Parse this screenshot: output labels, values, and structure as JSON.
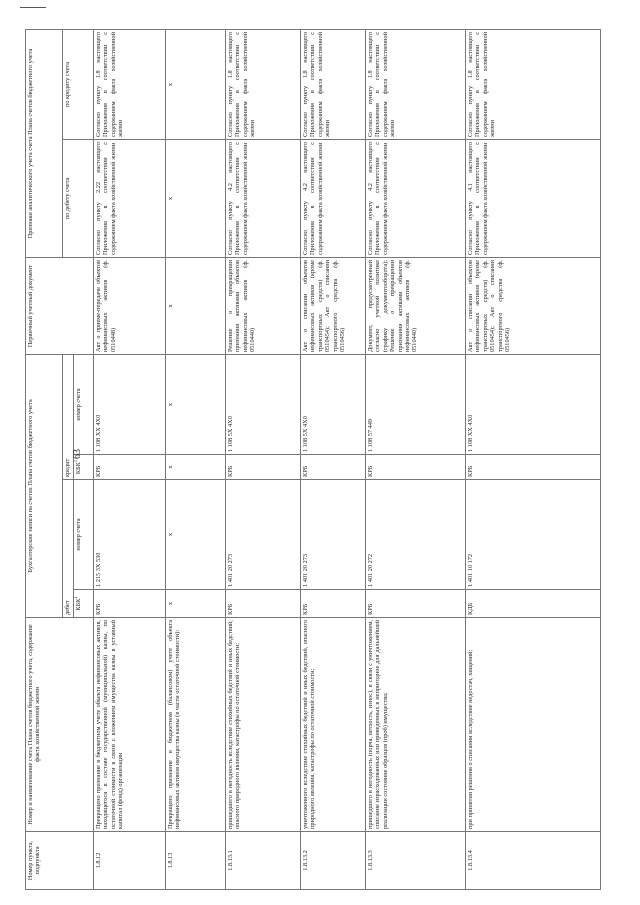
{
  "page_number": "63",
  "header": {
    "num": "Номер пункта, подпункта",
    "name": "Номер и наименование счета Плана счетов бюджетного учета, содержание факта хозяйственной жизни",
    "entries": "Бухгалтерские записи на счетах Плана счетов бюджетного учета",
    "debit": "дебет",
    "credit": "кредит",
    "kbk": "КБК",
    "kbk_footnote": "1",
    "account": "номер счета",
    "document": "Первичный учетный документ",
    "analytics": "Признаки аналитического учета счета Плана счетов бюджетного учета",
    "by_debit": "по дебету счета",
    "by_credit": "по кредиту счета"
  },
  "rows": [
    {
      "num": "1.8.12",
      "name": "Прекращено признание в бюджетном учете объекта нефинансовых активов, находящегося в составе государственной (муниципальной) казны, по остаточной стоимости в связи с вложением имущества казны в уставный капитал (фонд) организации",
      "dr_kbk": "КРБ",
      "dr_acc": "1 215 3X 530",
      "cr_kbk": "КРБ",
      "cr_acc": "1 108 XX 4X0",
      "doc": "Акт о приеме-передаче объектов нефинансовых активов (ф. 0510448)",
      "an_dr": "Согласно пункту 2.22 настоящего Приложения в соответствии с содержанием факта хозяйственной жизни",
      "an_cr": "Согласно пункту 1.8 настоящего Приложения в соответствии с содержанием факта хозяйственной жизни"
    },
    {
      "num": "1.8.13",
      "name": "Прекращено признание в бюджетном (балансовом) учете объекта нефинансовых активов имущества казны (в части остаточной стоимости):",
      "dr_kbk": "х",
      "dr_acc": "х",
      "cr_kbk": "х",
      "cr_acc": "х",
      "doc": "х",
      "an_dr": "х",
      "an_cr": "х"
    },
    {
      "num": "1.8.13.1",
      "name": "пришедшего в негодность вследствие стихийных бедствий и иных бедствий, опасного природного явления, катастрофы по остаточной стоимости;",
      "dr_kbk": "КРБ",
      "dr_acc": "1 401 20 273",
      "cr_kbk": "КРБ",
      "cr_acc": "1 108 5X 4X0",
      "doc": "Решение о прекращении признания активами объектов нефинансовых активов (ф. 0510440)",
      "an_dr": "Согласно пункту 4.2 настоящего Приложения в соответствии с содержанием факта хозяйственной жизни",
      "an_cr": "Согласно пункту 1.8 настоящего Приложения в соответствии с содержанием факта хозяйственной жизни"
    },
    {
      "num": "1.8.13.2",
      "name": "уничтоженного вследствие стихийных бедствий и иных бедствий, опасного природного явления, катастрофы по остаточной стоимости;",
      "dr_kbk": "КРБ",
      "dr_acc": "1 401 20 273",
      "cr_kbk": "КРБ",
      "cr_acc": "1 108 5X 4X0",
      "doc": "Акт о списании объектов нефинансовых активов (кроме транспортных средств) (ф. 0510454); Акт о списании транспортного средства (ф. 0510456)",
      "an_dr": "Согласно пункту 4.2 настоящего Приложения в соответствии с содержанием факта хозяйственной жизни",
      "an_cr": "Согласно пункту 1.8 настоящего Приложения в соответствии с содержанием факта хозяйственной жизни"
    },
    {
      "num": "1.8.13.3",
      "name": "пришедшего в негодность (порча, ветхость, износ), в связи с уничтожением, списание израсходованных или приведенных в непригодное для дальнейшей реализации состояние образцов (проб) имущества;",
      "dr_kbk": "КРБ",
      "dr_acc": "1 401 20 272",
      "cr_kbk": "КРБ",
      "cr_acc": "1 108 57 449",
      "doc": "Документ, предусмотренный согласно учетной политике (графику документооборота); Решение о прекращении признания активами объектов нефинансовых активов (ф. 0510440)",
      "an_dr": "Согласно пункту 4.2 настоящего Приложения в соответствии с содержанием факта хозяйственной жизни",
      "an_cr": "Согласно пункту 1.8 настоящего Приложения в соответствии с содержанием факта хозяйственной жизни"
    },
    {
      "num": "1.8.13.4",
      "name": "при принятии решения о списании вследствие недостач, хищений;",
      "dr_kbk": "КДБ",
      "dr_acc": "1 401 10 172",
      "cr_kbk": "КРБ",
      "cr_acc": "1 108 XX 4X0",
      "doc": "Акт о списании объектов нефинансовых активов (кроме транспортных средств) (ф. 0510454); Акт о списании транспортного средства (ф. 0510456)",
      "an_dr": "Согласно пункту 4.1 настоящего Приложения в соответствии с содержанием факта хозяйственной жизни",
      "an_cr": "Согласно пункту 1.8 настоящего Приложения в соответствии с содержанием факта хозяйственной жизни"
    }
  ]
}
